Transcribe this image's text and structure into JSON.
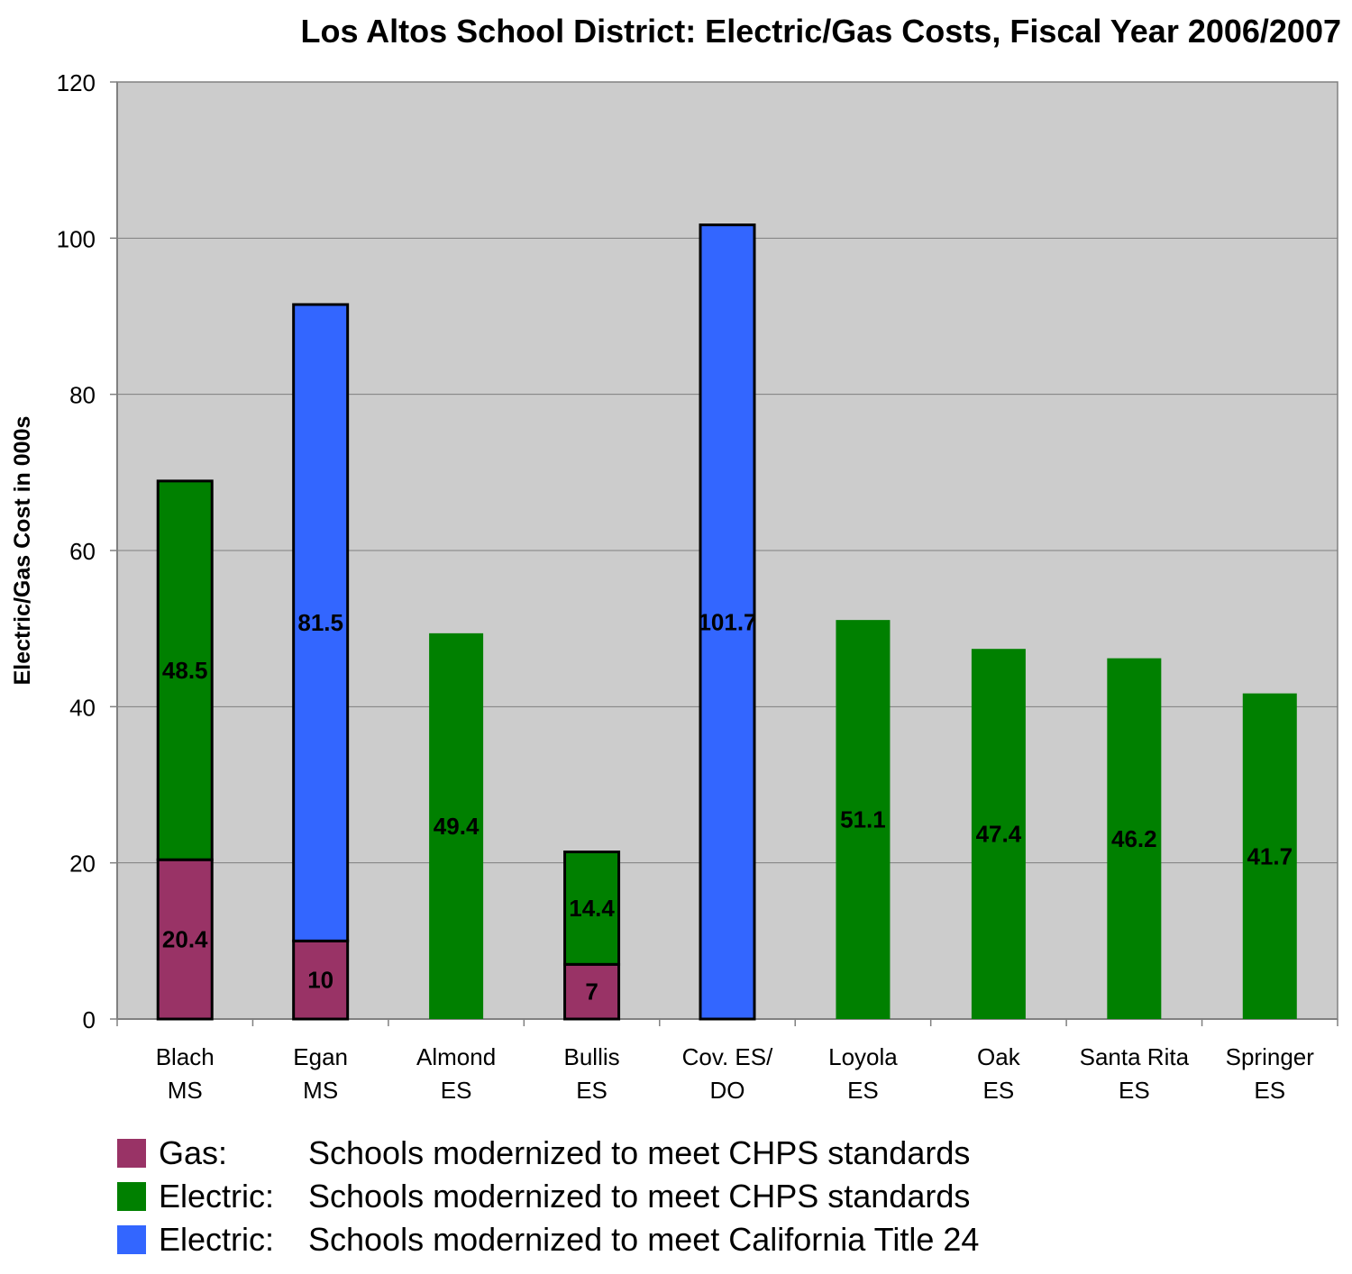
{
  "chart_data": {
    "type": "bar",
    "stacked": true,
    "title": "Los Altos School District: Electric/Gas Costs, Fiscal Year 2006/2007",
    "xlabel": "",
    "ylabel": "Electric/Gas Cost in 000s",
    "ylim": [
      0,
      120
    ],
    "yticks": [
      "0",
      "20",
      "40",
      "60",
      "80",
      "100",
      "120"
    ],
    "grid": true,
    "legend_position": "bottom-left",
    "categories": [
      [
        "Blach",
        "MS"
      ],
      [
        "Egan",
        "MS"
      ],
      [
        "Almond",
        "ES"
      ],
      [
        "Bullis",
        "ES"
      ],
      [
        "Cov. ES/",
        "DO"
      ],
      [
        "Loyola",
        "ES"
      ],
      [
        "Oak",
        "ES"
      ],
      [
        "Santa Rita",
        "ES"
      ],
      [
        "Springer",
        "ES"
      ]
    ],
    "series": [
      {
        "kind": "Gas:",
        "name": "Schools modernized to meet CHPS standards",
        "color": "#993366",
        "values": [
          20.4,
          10,
          null,
          7,
          null,
          null,
          null,
          null,
          null
        ],
        "labels": [
          "20.4",
          "10",
          "",
          "7",
          "",
          "",
          "",
          "",
          ""
        ]
      },
      {
        "kind": "Electric:",
        "name": "Schools modernized to meet CHPS standards",
        "color": "#008000",
        "values": [
          48.5,
          null,
          49.4,
          14.4,
          null,
          51.1,
          47.4,
          46.2,
          41.7
        ],
        "labels": [
          "48.5",
          "",
          "49.4",
          "14.4",
          "",
          "51.1",
          "47.4",
          "46.2",
          "41.7"
        ]
      },
      {
        "kind": "Electric:",
        "name": "Schools modernized to meet California Title 24",
        "color": "#3366FF",
        "values": [
          null,
          81.5,
          null,
          null,
          101.7,
          null,
          null,
          null,
          null
        ],
        "labels": [
          "",
          "81.5",
          "",
          "",
          "101.7",
          "",
          "",
          "",
          ""
        ]
      }
    ],
    "plot_background": "#CCCCCC"
  }
}
